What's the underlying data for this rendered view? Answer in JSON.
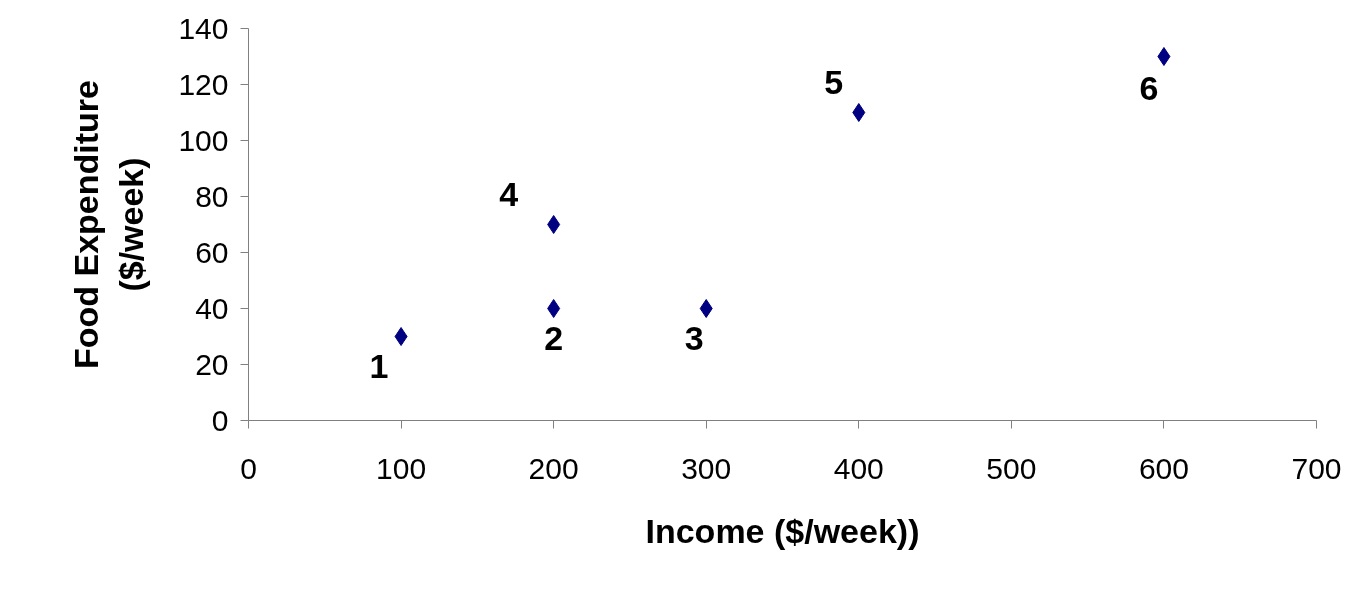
{
  "chart_data": {
    "type": "scatter",
    "xlabel": "Income ($/week))",
    "ylabel": "Food Expenditure\n($/week)",
    "x": [
      100,
      200,
      300,
      200,
      400,
      600
    ],
    "values": [
      30,
      40,
      40,
      70,
      110,
      130
    ],
    "color": "#000080",
    "marker": "diamond",
    "xlim": [
      0,
      700
    ],
    "xticks": [
      0,
      100,
      200,
      300,
      400,
      500,
      600,
      700
    ],
    "ylim": [
      0,
      140
    ],
    "yticks": [
      0,
      20,
      40,
      60,
      80,
      100,
      120,
      140
    ],
    "grid": false,
    "annotations": [
      {
        "text": "1",
        "x": 100,
        "y": 30
      },
      {
        "text": "2",
        "x": 200,
        "y": 40
      },
      {
        "text": "3",
        "x": 300,
        "y": 40
      },
      {
        "text": "4",
        "x": 200,
        "y": 70
      },
      {
        "text": "5",
        "x": 400,
        "y": 110
      },
      {
        "text": "6",
        "x": 600,
        "y": 130
      }
    ]
  }
}
